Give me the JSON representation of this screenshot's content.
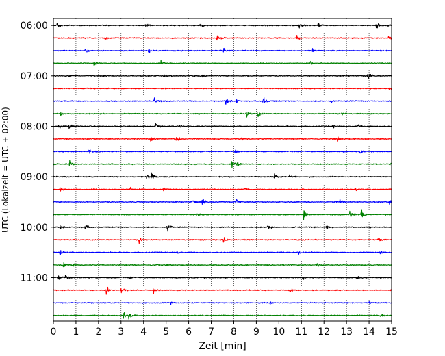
{
  "chart_data": {
    "type": "line",
    "title": "",
    "xlabel": "Zeit  [min]",
    "ylabel": "UTC (Lokalzeit = UTC + 02:00)",
    "xlim": [
      0,
      15
    ],
    "x_ticks": [
      0,
      1,
      2,
      3,
      4,
      5,
      6,
      7,
      8,
      9,
      10,
      11,
      12,
      13,
      14,
      15
    ],
    "y_tick_labels": [
      "06:00",
      "07:00",
      "08:00",
      "09:00",
      "10:00",
      "11:00"
    ],
    "row_start_time": "06:00",
    "row_interval_min": 15,
    "grid_x": true,
    "grid_y": false,
    "trace_colors": [
      "#000000",
      "#ff0000",
      "#0000ff",
      "#008000"
    ],
    "traces": [
      {
        "time": "06:00",
        "events": [
          [
            0.15,
            0.6
          ],
          [
            4.05,
            0.5
          ],
          [
            6.5,
            0.4
          ],
          [
            10.9,
            0.5
          ],
          [
            11.75,
            0.9
          ],
          [
            14.3,
            0.9
          ],
          [
            14.8,
            0.5
          ]
        ]
      },
      {
        "time": "06:15",
        "events": [
          [
            2.3,
            0.5
          ],
          [
            7.25,
            0.5
          ],
          [
            10.8,
            0.5
          ],
          [
            14.85,
            0.4
          ]
        ]
      },
      {
        "time": "06:30",
        "events": [
          [
            1.4,
            0.5
          ],
          [
            4.2,
            0.6
          ],
          [
            7.55,
            0.4
          ],
          [
            11.5,
            0.4
          ],
          [
            14.5,
            0.4
          ]
        ]
      },
      {
        "time": "06:45",
        "events": [
          [
            1.8,
            0.6
          ],
          [
            4.75,
            0.6
          ],
          [
            11.4,
            0.4
          ]
        ]
      },
      {
        "time": "07:00",
        "events": [
          [
            2.1,
            0.4
          ],
          [
            4.9,
            0.3
          ],
          [
            6.6,
            0.4
          ],
          [
            13.95,
            1.0
          ]
        ]
      },
      {
        "time": "07:15",
        "events": [
          [
            14.9,
            0.4
          ]
        ]
      },
      {
        "time": "07:30",
        "events": [
          [
            4.45,
            0.9
          ],
          [
            7.65,
            1.0
          ],
          [
            8.1,
            0.5
          ],
          [
            9.3,
            1.0
          ],
          [
            12.3,
            0.5
          ]
        ]
      },
      {
        "time": "07:45",
        "events": [
          [
            0.3,
            0.4
          ],
          [
            8.55,
            0.8
          ],
          [
            9.05,
            0.8
          ],
          [
            12.8,
            0.3
          ]
        ]
      },
      {
        "time": "08:00",
        "events": [
          [
            0.25,
            0.5
          ],
          [
            0.7,
            0.8
          ],
          [
            4.55,
            0.8
          ],
          [
            5.6,
            0.4
          ],
          [
            12.4,
            0.4
          ],
          [
            13.5,
            0.4
          ]
        ]
      },
      {
        "time": "08:15",
        "events": [
          [
            4.3,
            0.9
          ],
          [
            5.45,
            1.0
          ],
          [
            8.35,
            0.4
          ],
          [
            12.6,
            0.4
          ]
        ]
      },
      {
        "time": "08:30",
        "events": [
          [
            1.55,
            0.8
          ],
          [
            8.05,
            0.5
          ],
          [
            13.6,
            0.4
          ]
        ]
      },
      {
        "time": "08:45",
        "events": [
          [
            0.7,
            0.9
          ],
          [
            7.9,
            0.9
          ],
          [
            8.15,
            0.7
          ],
          [
            14.9,
            0.4
          ]
        ]
      },
      {
        "time": "09:00",
        "events": [
          [
            4.15,
            0.9
          ],
          [
            4.35,
            0.9
          ],
          [
            9.8,
            0.7
          ],
          [
            10.45,
            0.6
          ]
        ]
      },
      {
        "time": "09:15",
        "events": [
          [
            0.3,
            0.5
          ],
          [
            3.4,
            0.4
          ],
          [
            4.85,
            0.4
          ],
          [
            8.5,
            0.4
          ],
          [
            13.4,
            0.4
          ]
        ]
      },
      {
        "time": "09:30",
        "events": [
          [
            6.15,
            0.8
          ],
          [
            6.6,
            0.9
          ],
          [
            8.1,
            0.7
          ],
          [
            12.7,
            0.7
          ],
          [
            14.9,
            1.0
          ]
        ]
      },
      {
        "time": "09:45",
        "events": [
          [
            6.35,
            0.4
          ],
          [
            11.1,
            1.0
          ],
          [
            13.15,
            1.0
          ],
          [
            13.65,
            1.0
          ]
        ]
      },
      {
        "time": "10:00",
        "events": [
          [
            0.3,
            0.5
          ],
          [
            1.4,
            0.8
          ],
          [
            5.05,
            1.0
          ],
          [
            9.5,
            0.5
          ],
          [
            12.1,
            0.4
          ]
        ]
      },
      {
        "time": "10:15",
        "events": [
          [
            3.8,
            0.9
          ],
          [
            7.5,
            1.0
          ],
          [
            14.4,
            0.7
          ]
        ]
      },
      {
        "time": "10:30",
        "events": [
          [
            0.3,
            1.0
          ],
          [
            5.5,
            0.4
          ],
          [
            10.9,
            0.5
          ],
          [
            14.5,
            0.4
          ]
        ]
      },
      {
        "time": "10:45",
        "events": [
          [
            0.45,
            0.8
          ],
          [
            0.9,
            0.5
          ],
          [
            11.65,
            0.6
          ]
        ]
      },
      {
        "time": "11:00",
        "events": [
          [
            0.2,
            0.8
          ],
          [
            0.55,
            0.8
          ],
          [
            3.35,
            0.3
          ],
          [
            11.05,
            0.4
          ],
          [
            13.5,
            0.3
          ]
        ]
      },
      {
        "time": "11:15",
        "events": [
          [
            2.35,
            1.0
          ],
          [
            3.0,
            0.8
          ],
          [
            4.45,
            0.6
          ],
          [
            10.5,
            0.8
          ]
        ]
      },
      {
        "time": "11:30",
        "events": [
          [
            5.2,
            0.3
          ],
          [
            9.6,
            0.3
          ],
          [
            14.0,
            0.3
          ]
        ]
      },
      {
        "time": "11:45",
        "events": [
          [
            3.1,
            1.0
          ],
          [
            3.35,
            1.0
          ],
          [
            14.5,
            0.4
          ]
        ]
      }
    ]
  }
}
